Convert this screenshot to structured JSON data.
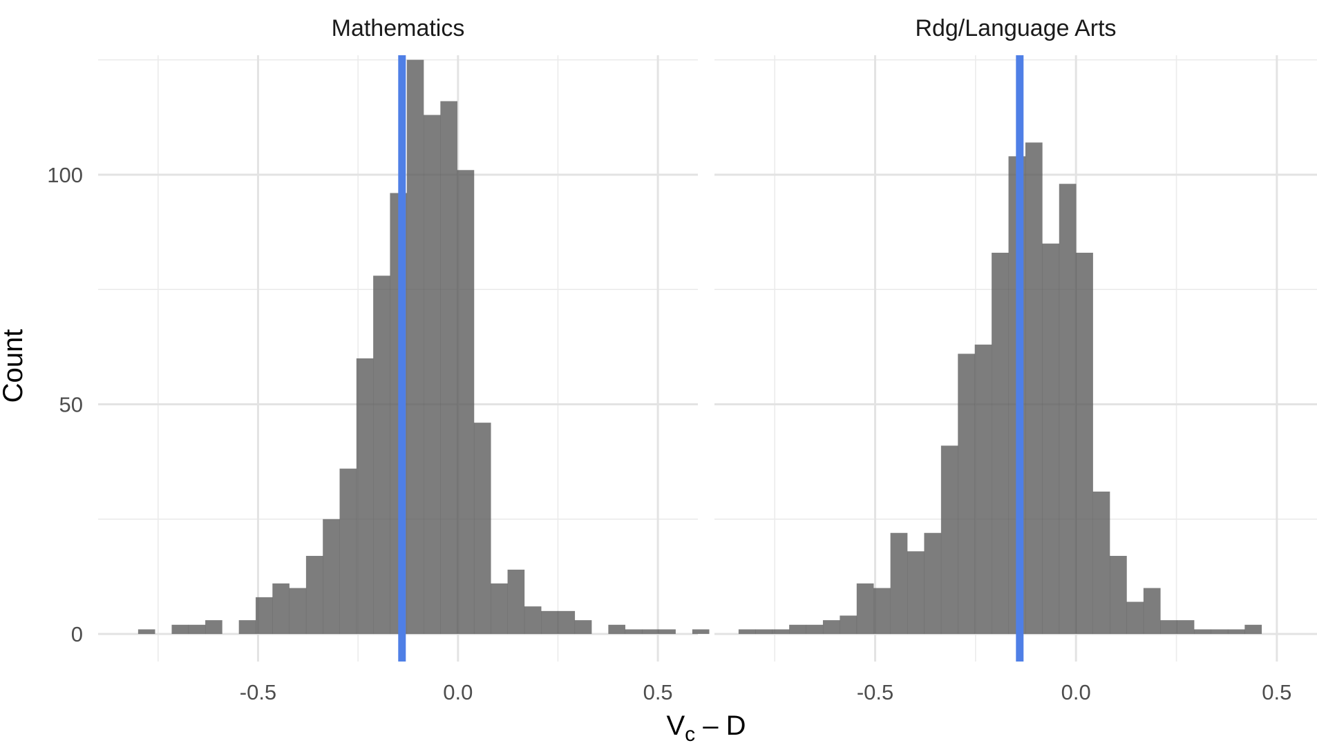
{
  "chart_data": [
    {
      "type": "bar",
      "title": "Mathematics",
      "xlabel": "Vc – D",
      "ylabel": "Count",
      "xlim": [
        -0.9,
        0.6
      ],
      "ylim": [
        -6,
        126
      ],
      "xticks": [
        -0.5,
        0.0,
        0.5
      ],
      "yticks": [
        0,
        50,
        100
      ],
      "xtick_labels": [
        "-0.5",
        "0.0",
        "0.5"
      ],
      "ytick_labels": [
        "0",
        "50",
        "100"
      ],
      "bin_width": 0.042,
      "bin_start": -0.8,
      "counts": [
        1,
        0,
        2,
        2,
        3,
        0,
        3,
        8,
        11,
        10,
        17,
        25,
        36,
        60,
        78,
        96,
        125,
        113,
        116,
        101,
        46,
        11,
        14,
        6,
        5,
        5,
        3,
        0,
        2,
        1,
        1,
        1,
        0,
        1
      ],
      "reference_line": {
        "x": -0.14,
        "color": "#4f7fe6"
      },
      "bar_color": "#595959",
      "grid": true
    },
    {
      "type": "bar",
      "title": "Rdg/Language Arts",
      "xlabel": "Vc – D",
      "ylabel": "Count",
      "xlim": [
        -0.9,
        0.6
      ],
      "ylim": [
        -6,
        126
      ],
      "xticks": [
        -0.5,
        0.0,
        0.5
      ],
      "yticks": [
        0,
        50,
        100
      ],
      "xtick_labels": [
        "-0.5",
        "0.0",
        "0.5"
      ],
      "ytick_labels": [
        "0",
        "50",
        "100"
      ],
      "bin_width": 0.042,
      "bin_start": -0.84,
      "counts": [
        1,
        1,
        1,
        2,
        2,
        3,
        4,
        11,
        10,
        22,
        18,
        22,
        41,
        61,
        63,
        83,
        104,
        107,
        85,
        98,
        83,
        31,
        17,
        7,
        10,
        3,
        3,
        1,
        1,
        1,
        2
      ],
      "reference_line": {
        "x": -0.14,
        "color": "#4f7fe6"
      },
      "bar_color": "#595959",
      "grid": true
    }
  ],
  "axis_title_x": {
    "main": "V",
    "sub": "c",
    "rest": " – D"
  },
  "axis_title_y": "Count"
}
